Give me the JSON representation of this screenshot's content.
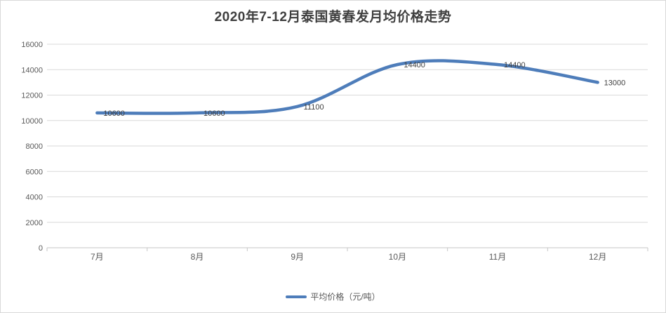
{
  "chart_data": {
    "type": "line",
    "title": "2020年7-12月泰国黄春发月均价格走势",
    "categories": [
      "7月",
      "8月",
      "9月",
      "10月",
      "11月",
      "12月"
    ],
    "series": [
      {
        "name": "平均价格（元/吨）",
        "values": [
          10600,
          10600,
          11100,
          14400,
          14400,
          13000
        ]
      }
    ],
    "data_labels": [
      "10600",
      "10600",
      "11100",
      "14400",
      "14400",
      "13000"
    ],
    "ylim": [
      0,
      16000
    ],
    "ytick_step": 2000,
    "ytick_labels": [
      "0",
      "2000",
      "4000",
      "6000",
      "8000",
      "10000",
      "12000",
      "14000",
      "16000"
    ],
    "grid": true,
    "smooth": true,
    "legend_position": "bottom",
    "colors": {
      "line": "#4e7dba",
      "data_label": "#404040",
      "tick_label": "#595959",
      "gridline": "#d9d9d9",
      "axis": "#c6c6c6",
      "title": "#3f3f3f"
    }
  }
}
